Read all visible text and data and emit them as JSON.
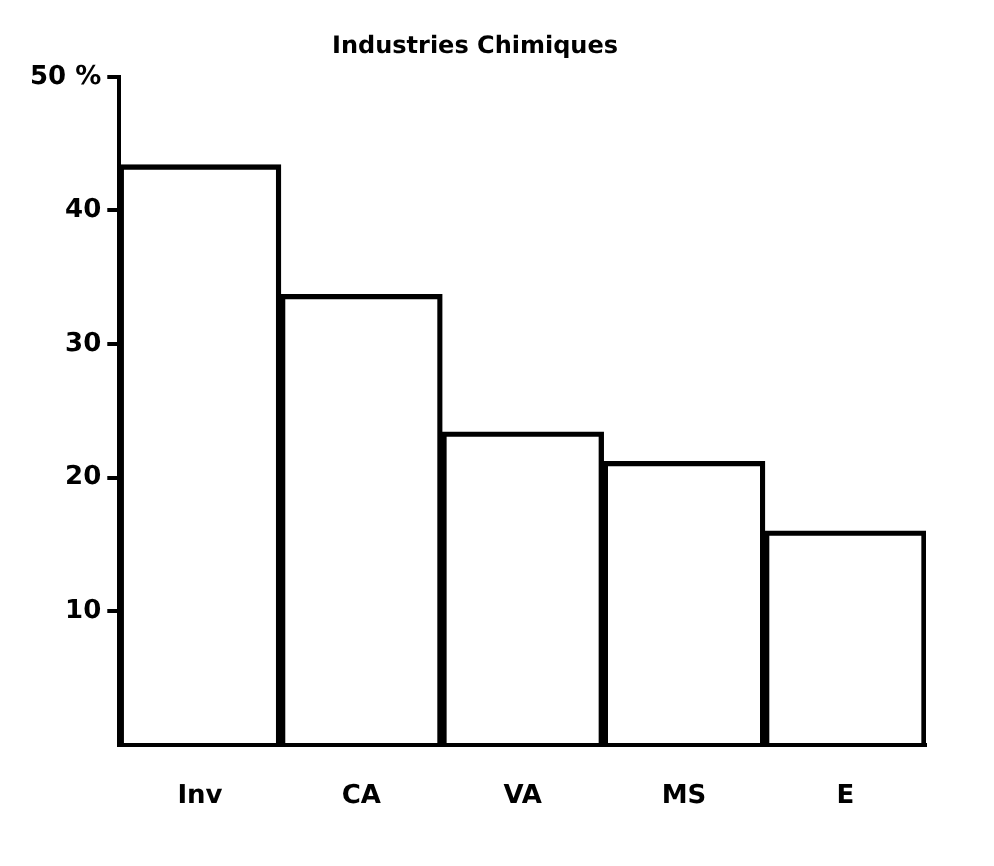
{
  "chart_data": {
    "type": "bar",
    "title": "Industries Chimiques",
    "categories": [
      "Inv",
      "CA",
      "VA",
      "MS",
      "E"
    ],
    "values": [
      43.4,
      33.7,
      23.4,
      21.2,
      16.0
    ],
    "color": "#000000",
    "ylim": [
      0,
      50
    ],
    "yticks": [
      {
        "value": 50,
        "label": "50 %"
      },
      40,
      30,
      20,
      10
    ],
    "grid": false,
    "legend": false
  }
}
